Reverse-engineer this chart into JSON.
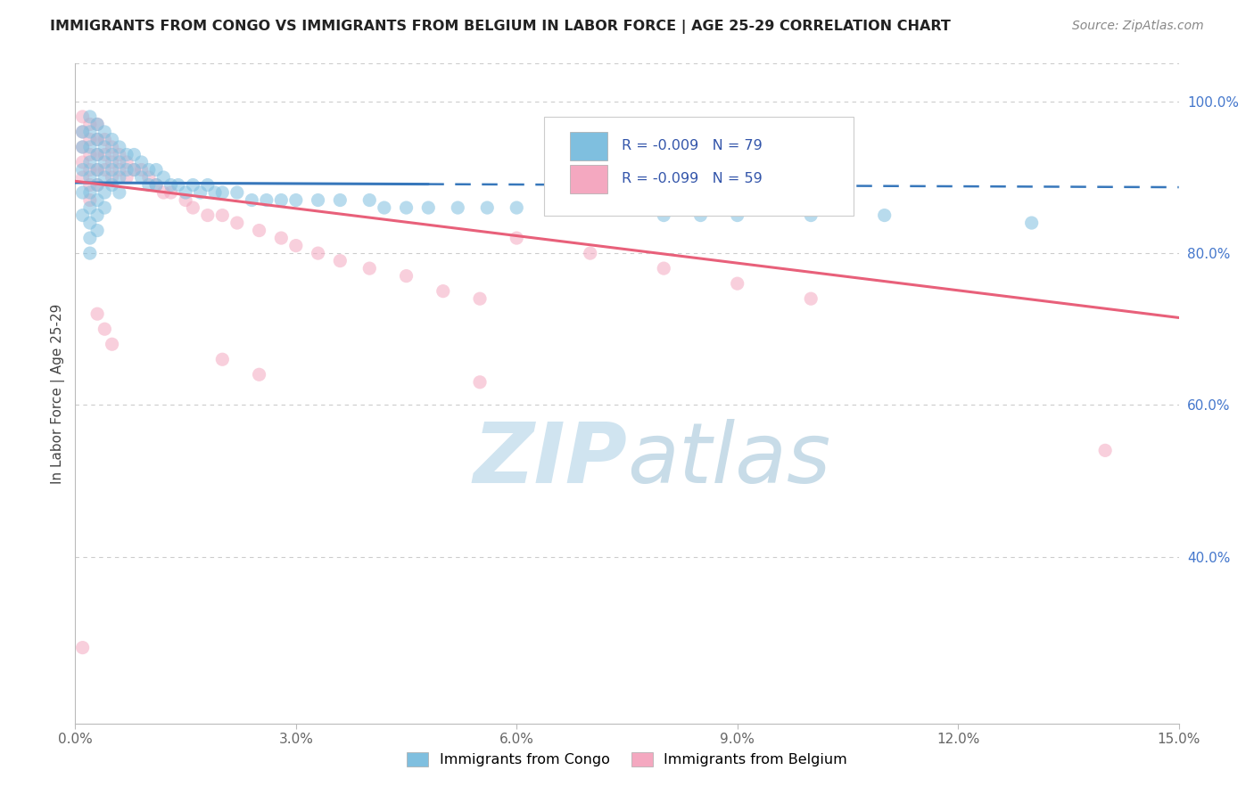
{
  "title": "IMMIGRANTS FROM CONGO VS IMMIGRANTS FROM BELGIUM IN LABOR FORCE | AGE 25-29 CORRELATION CHART",
  "source": "Source: ZipAtlas.com",
  "ylabel": "In Labor Force | Age 25-29",
  "xlim": [
    0.0,
    0.15
  ],
  "ylim": [
    0.18,
    1.05
  ],
  "xticks": [
    0.0,
    0.03,
    0.06,
    0.09,
    0.12,
    0.15
  ],
  "xticklabels": [
    "0.0%",
    "3.0%",
    "6.0%",
    "9.0%",
    "12.0%",
    "15.0%"
  ],
  "yticks": [
    0.4,
    0.6,
    0.8,
    1.0
  ],
  "yticklabels": [
    "40.0%",
    "60.0%",
    "80.0%",
    "100.0%"
  ],
  "grid_yticks": [
    0.4,
    0.6,
    0.8,
    1.0
  ],
  "blue_R": -0.009,
  "blue_N": 79,
  "pink_R": -0.099,
  "pink_N": 59,
  "blue_color": "#7fbfdf",
  "pink_color": "#f4a8c0",
  "blue_line_color": "#3777bb",
  "pink_line_color": "#e8607a",
  "watermark_zip": "ZIP",
  "watermark_atlas": "atlas",
  "watermark_color": "#d0e4f0",
  "blue_line_x0": 0.0,
  "blue_line_y0": 0.893,
  "blue_line_x1": 0.15,
  "blue_line_y1": 0.887,
  "blue_line_solid_end": 0.048,
  "pink_line_x0": 0.0,
  "pink_line_y0": 0.895,
  "pink_line_x1": 0.15,
  "pink_line_y1": 0.715,
  "congo_x": [
    0.001,
    0.001,
    0.001,
    0.001,
    0.001,
    0.002,
    0.002,
    0.002,
    0.002,
    0.002,
    0.002,
    0.002,
    0.002,
    0.002,
    0.002,
    0.003,
    0.003,
    0.003,
    0.003,
    0.003,
    0.003,
    0.003,
    0.003,
    0.004,
    0.004,
    0.004,
    0.004,
    0.004,
    0.004,
    0.005,
    0.005,
    0.005,
    0.005,
    0.006,
    0.006,
    0.006,
    0.006,
    0.007,
    0.007,
    0.008,
    0.008,
    0.009,
    0.009,
    0.01,
    0.01,
    0.011,
    0.011,
    0.012,
    0.013,
    0.014,
    0.015,
    0.016,
    0.017,
    0.018,
    0.019,
    0.02,
    0.022,
    0.024,
    0.026,
    0.028,
    0.03,
    0.033,
    0.036,
    0.04,
    0.042,
    0.045,
    0.048,
    0.052,
    0.056,
    0.06,
    0.065,
    0.07,
    0.075,
    0.08,
    0.085,
    0.09,
    0.1,
    0.11,
    0.13
  ],
  "congo_y": [
    0.96,
    0.94,
    0.91,
    0.88,
    0.85,
    0.98,
    0.96,
    0.94,
    0.92,
    0.9,
    0.88,
    0.86,
    0.84,
    0.82,
    0.8,
    0.97,
    0.95,
    0.93,
    0.91,
    0.89,
    0.87,
    0.85,
    0.83,
    0.96,
    0.94,
    0.92,
    0.9,
    0.88,
    0.86,
    0.95,
    0.93,
    0.91,
    0.89,
    0.94,
    0.92,
    0.9,
    0.88,
    0.93,
    0.91,
    0.93,
    0.91,
    0.92,
    0.9,
    0.91,
    0.89,
    0.91,
    0.89,
    0.9,
    0.89,
    0.89,
    0.88,
    0.89,
    0.88,
    0.89,
    0.88,
    0.88,
    0.88,
    0.87,
    0.87,
    0.87,
    0.87,
    0.87,
    0.87,
    0.87,
    0.86,
    0.86,
    0.86,
    0.86,
    0.86,
    0.86,
    0.86,
    0.86,
    0.86,
    0.85,
    0.85,
    0.85,
    0.85,
    0.85,
    0.84
  ],
  "belgium_x": [
    0.001,
    0.001,
    0.001,
    0.001,
    0.001,
    0.002,
    0.002,
    0.002,
    0.002,
    0.002,
    0.002,
    0.003,
    0.003,
    0.003,
    0.003,
    0.003,
    0.004,
    0.004,
    0.004,
    0.005,
    0.005,
    0.005,
    0.006,
    0.006,
    0.007,
    0.007,
    0.008,
    0.009,
    0.01,
    0.011,
    0.012,
    0.013,
    0.015,
    0.016,
    0.018,
    0.02,
    0.022,
    0.025,
    0.028,
    0.03,
    0.033,
    0.036,
    0.04,
    0.045,
    0.05,
    0.055,
    0.06,
    0.07,
    0.08,
    0.09,
    0.1,
    0.003,
    0.004,
    0.005,
    0.02,
    0.025,
    0.055,
    0.14,
    0.001
  ],
  "belgium_y": [
    0.98,
    0.96,
    0.94,
    0.92,
    0.9,
    0.97,
    0.95,
    0.93,
    0.91,
    0.89,
    0.87,
    0.97,
    0.95,
    0.93,
    0.91,
    0.89,
    0.95,
    0.93,
    0.91,
    0.94,
    0.92,
    0.9,
    0.93,
    0.91,
    0.92,
    0.9,
    0.91,
    0.91,
    0.9,
    0.89,
    0.88,
    0.88,
    0.87,
    0.86,
    0.85,
    0.85,
    0.84,
    0.83,
    0.82,
    0.81,
    0.8,
    0.79,
    0.78,
    0.77,
    0.75,
    0.74,
    0.82,
    0.8,
    0.78,
    0.76,
    0.74,
    0.72,
    0.7,
    0.68,
    0.66,
    0.64,
    0.63,
    0.54,
    0.28
  ],
  "dot_size": 120,
  "dot_alpha": 0.55
}
